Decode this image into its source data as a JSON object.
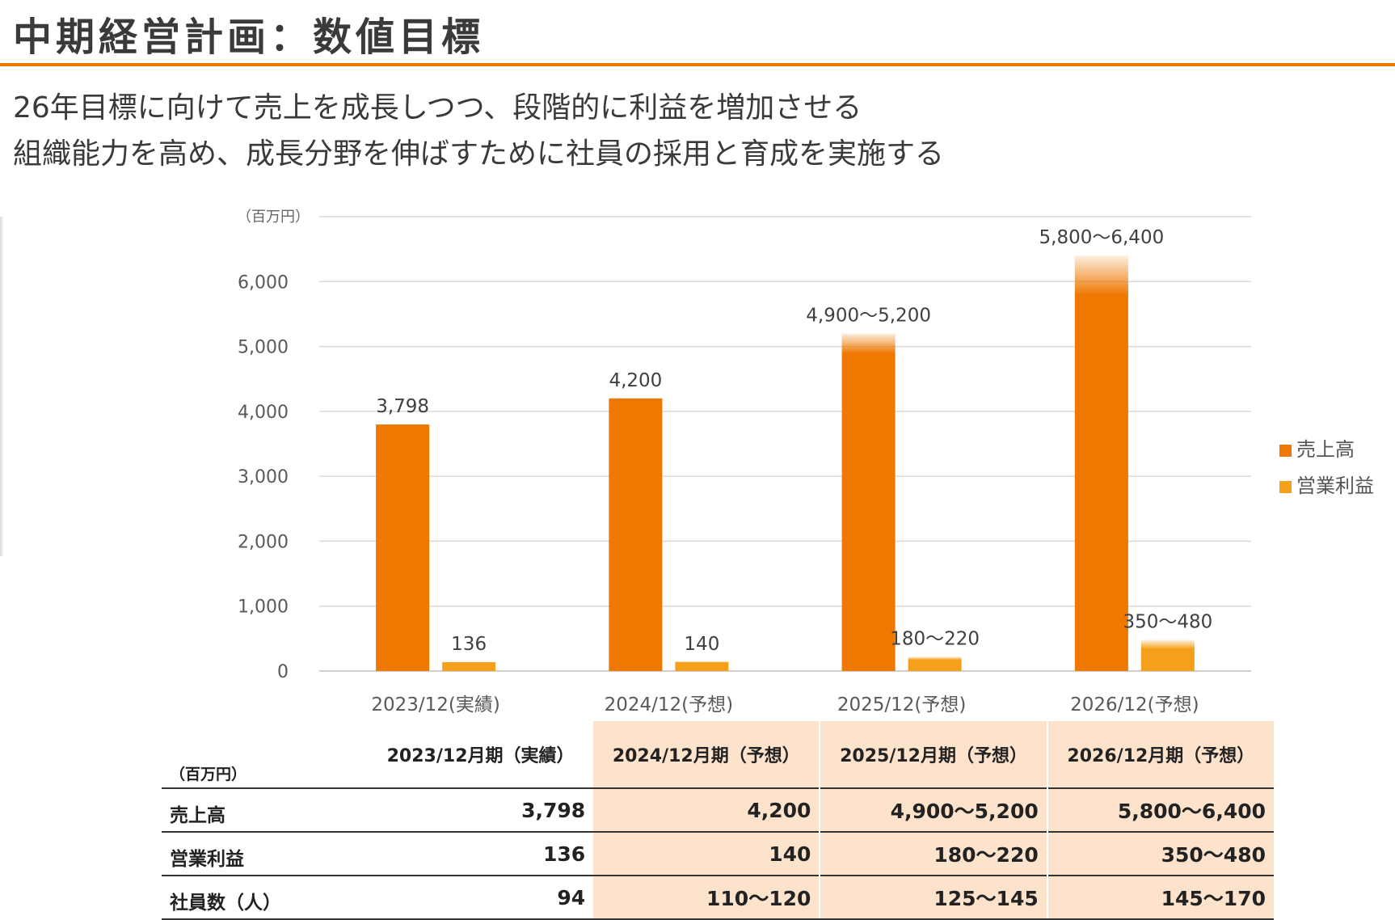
{
  "page": {
    "title": "中期経営計画：数値目標",
    "subtitle_line1": "26年目標に向けて売上を成長しつつ、段階的に利益を増加させる",
    "subtitle_line2": "組織能力を高め、成長分野を伸ばすために社員の採用と育成を実施する"
  },
  "colors": {
    "accent": "#EE7800",
    "sales": "#EE7800",
    "profit": "#F5A01A",
    "table_highlight": "#FDE3CC"
  },
  "chart_data": {
    "type": "bar",
    "unit_label": "（百万円）",
    "categories": [
      "2023/12(実績)",
      "2024/12(予想)",
      "2025/12(予想)",
      "2026/12(予想)"
    ],
    "ylim": [
      0,
      7000
    ],
    "yticks": [
      0,
      1000,
      2000,
      3000,
      4000,
      5000,
      6000
    ],
    "ytick_labels": [
      "0",
      "1,000",
      "2,000",
      "3,000",
      "4,000",
      "5,000",
      "6,000"
    ],
    "grid": true,
    "legend_position": "right",
    "series": [
      {
        "name": "売上高",
        "color": "#EE7800",
        "low": [
          3798,
          4200,
          4900,
          5800
        ],
        "high": [
          3798,
          4200,
          5200,
          6400
        ],
        "labels": [
          "3,798",
          "4,200",
          "4,900～5,200",
          "5,800～6,400"
        ]
      },
      {
        "name": "営業利益",
        "color": "#F5A01A",
        "low": [
          136,
          140,
          180,
          350
        ],
        "high": [
          136,
          140,
          220,
          480
        ],
        "labels": [
          "136",
          "140",
          "180～220",
          "350～480"
        ]
      }
    ]
  },
  "table": {
    "unit": "（百万円）",
    "columns": [
      "2023/12月期（実績）",
      "2024/12月期（予想）",
      "2025/12月期（予想）",
      "2026/12月期（予想）"
    ],
    "rows": [
      {
        "label": "売上高",
        "values": [
          "3,798",
          "4,200",
          "4,900～5,200",
          "5,800～6,400"
        ]
      },
      {
        "label": "営業利益",
        "values": [
          "136",
          "140",
          "180～220",
          "350～480"
        ]
      },
      {
        "label": "社員数（人）",
        "values": [
          "94",
          "110～120",
          "125～145",
          "145～170"
        ]
      }
    ]
  }
}
